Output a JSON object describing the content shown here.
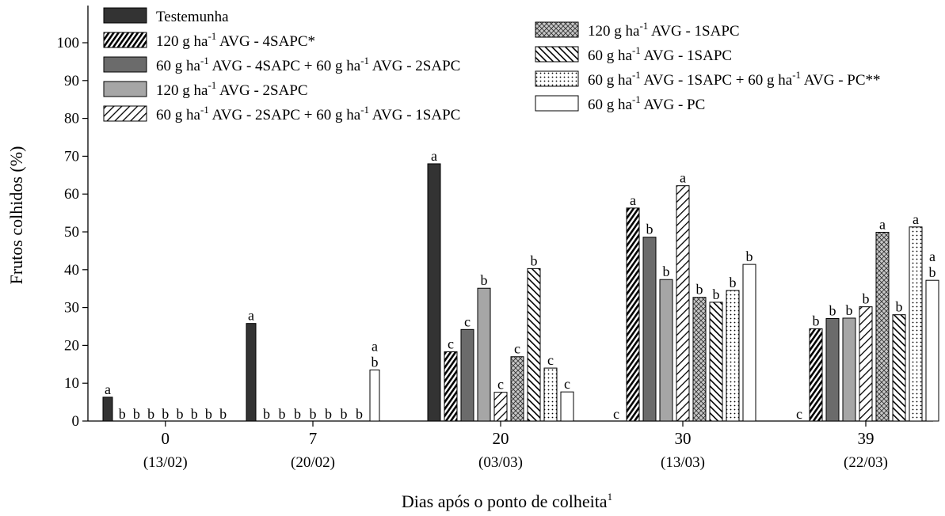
{
  "colors": {
    "testemunha": "#333333",
    "dark_gray": "#6b6b6b",
    "light_gray": "#a6a6a6",
    "hatch": "#000000",
    "crosshatch_bg": "#c8c8c8"
  },
  "chart_data": {
    "type": "bar",
    "ylabel": "Frutos colhidos (%)",
    "xlabel": "Dias após o ponto de colheita",
    "xlabel_sup": "1",
    "ylim": [
      0,
      110
    ],
    "yticks": [
      0,
      10,
      20,
      30,
      40,
      50,
      60,
      70,
      80,
      90,
      100
    ],
    "grid": false,
    "legend_position": "top",
    "categories": [
      "0",
      "7",
      "20",
      "30",
      "39"
    ],
    "category_dates": [
      "(13/02)",
      "(20/02)",
      "(03/03)",
      "(13/03)",
      "(22/03)"
    ],
    "series": [
      {
        "name": "Testemunha",
        "pattern": "solid-black",
        "values": [
          6.3,
          25.8,
          68.0,
          0,
          0
        ],
        "letters": [
          "a",
          "a",
          "a",
          "c",
          "c"
        ]
      },
      {
        "name": "120 g ha-1 AVG - 4SAPC*",
        "pattern": "diag-dense",
        "values": [
          0,
          0,
          18.3,
          56.3,
          24.4
        ],
        "letters": [
          "b",
          "b",
          "c",
          "a",
          "b"
        ]
      },
      {
        "name": "60 g ha-1 AVG - 4SAPC + 60 g ha-1 AVG - 2SAPC",
        "pattern": "solid-dark",
        "values": [
          0,
          0,
          24.2,
          48.6,
          27.1
        ],
        "letters": [
          "b",
          "b",
          "c",
          "b",
          "b"
        ]
      },
      {
        "name": "120 g ha-1 AVG - 2SAPC",
        "pattern": "solid-light",
        "values": [
          0,
          0,
          35.1,
          37.4,
          27.2
        ],
        "letters": [
          "b",
          "b",
          "b",
          "b",
          "b"
        ]
      },
      {
        "name": "60 g ha-1 AVG - 2SAPC + 60 g ha-1 AVG - 1SAPC",
        "pattern": "diag-sparse",
        "values": [
          0,
          0,
          7.6,
          62.2,
          30.2
        ],
        "letters": [
          "b",
          "b",
          "c",
          "a",
          "b"
        ]
      },
      {
        "name": "120 g ha-1 AVG - 1SAPC",
        "pattern": "crosshatch",
        "values": [
          0,
          0,
          17.0,
          32.7,
          49.9
        ],
        "letters": [
          "b",
          "b",
          "c",
          "b",
          "a"
        ]
      },
      {
        "name": "60 g ha-1 AVG - 1SAPC",
        "pattern": "diag-back",
        "values": [
          0,
          0,
          40.3,
          31.4,
          28.1
        ],
        "letters": [
          "b",
          "b",
          "b",
          "b",
          "b"
        ]
      },
      {
        "name": "60 g ha-1 AVG - 1SAPC + 60 g ha-1 AVG - PC**",
        "pattern": "dots",
        "values": [
          0,
          0,
          14.0,
          34.5,
          51.3
        ],
        "letters": [
          "b",
          "b",
          "c",
          "b",
          "a"
        ]
      },
      {
        "name": "60 g ha-1 AVG - PC",
        "pattern": "white",
        "values": [
          0,
          13.5,
          7.7,
          41.4,
          37.2
        ],
        "letters": [
          "b",
          "b",
          "c",
          "b",
          "b"
        ],
        "letters_upper": [
          "",
          "a",
          "",
          "",
          "a"
        ]
      }
    ],
    "legend_text": [
      {
        "pre": "Testemunha",
        "sup": "",
        "post": ""
      },
      {
        "pre": "120 g ha",
        "sup": "-1",
        "post": " AVG - 4SAPC*"
      },
      {
        "pre": "60 g ha",
        "sup": "-1",
        "post": " AVG - 4SAPC + 60 g ha",
        "sup2": "-1",
        "post2": " AVG - 2SAPC"
      },
      {
        "pre": "120 g ha",
        "sup": "-1",
        "post": " AVG - 2SAPC"
      },
      {
        "pre": "60 g ha",
        "sup": "-1",
        "post": " AVG - 2SAPC + 60 g ha",
        "sup2": "-1",
        "post2": " AVG - 1SAPC"
      },
      {
        "pre": "120 g ha",
        "sup": "-1",
        "post": " AVG - 1SAPC"
      },
      {
        "pre": "60 g ha",
        "sup": "-1",
        "post": " AVG - 1SAPC"
      },
      {
        "pre": "60 g ha",
        "sup": "-1",
        "post": " AVG - 1SAPC + 60 g ha",
        "sup2": "-1",
        "post2": " AVG - PC**"
      },
      {
        "pre": "60 g ha",
        "sup": "-1",
        "post": " AVG - PC"
      }
    ]
  }
}
